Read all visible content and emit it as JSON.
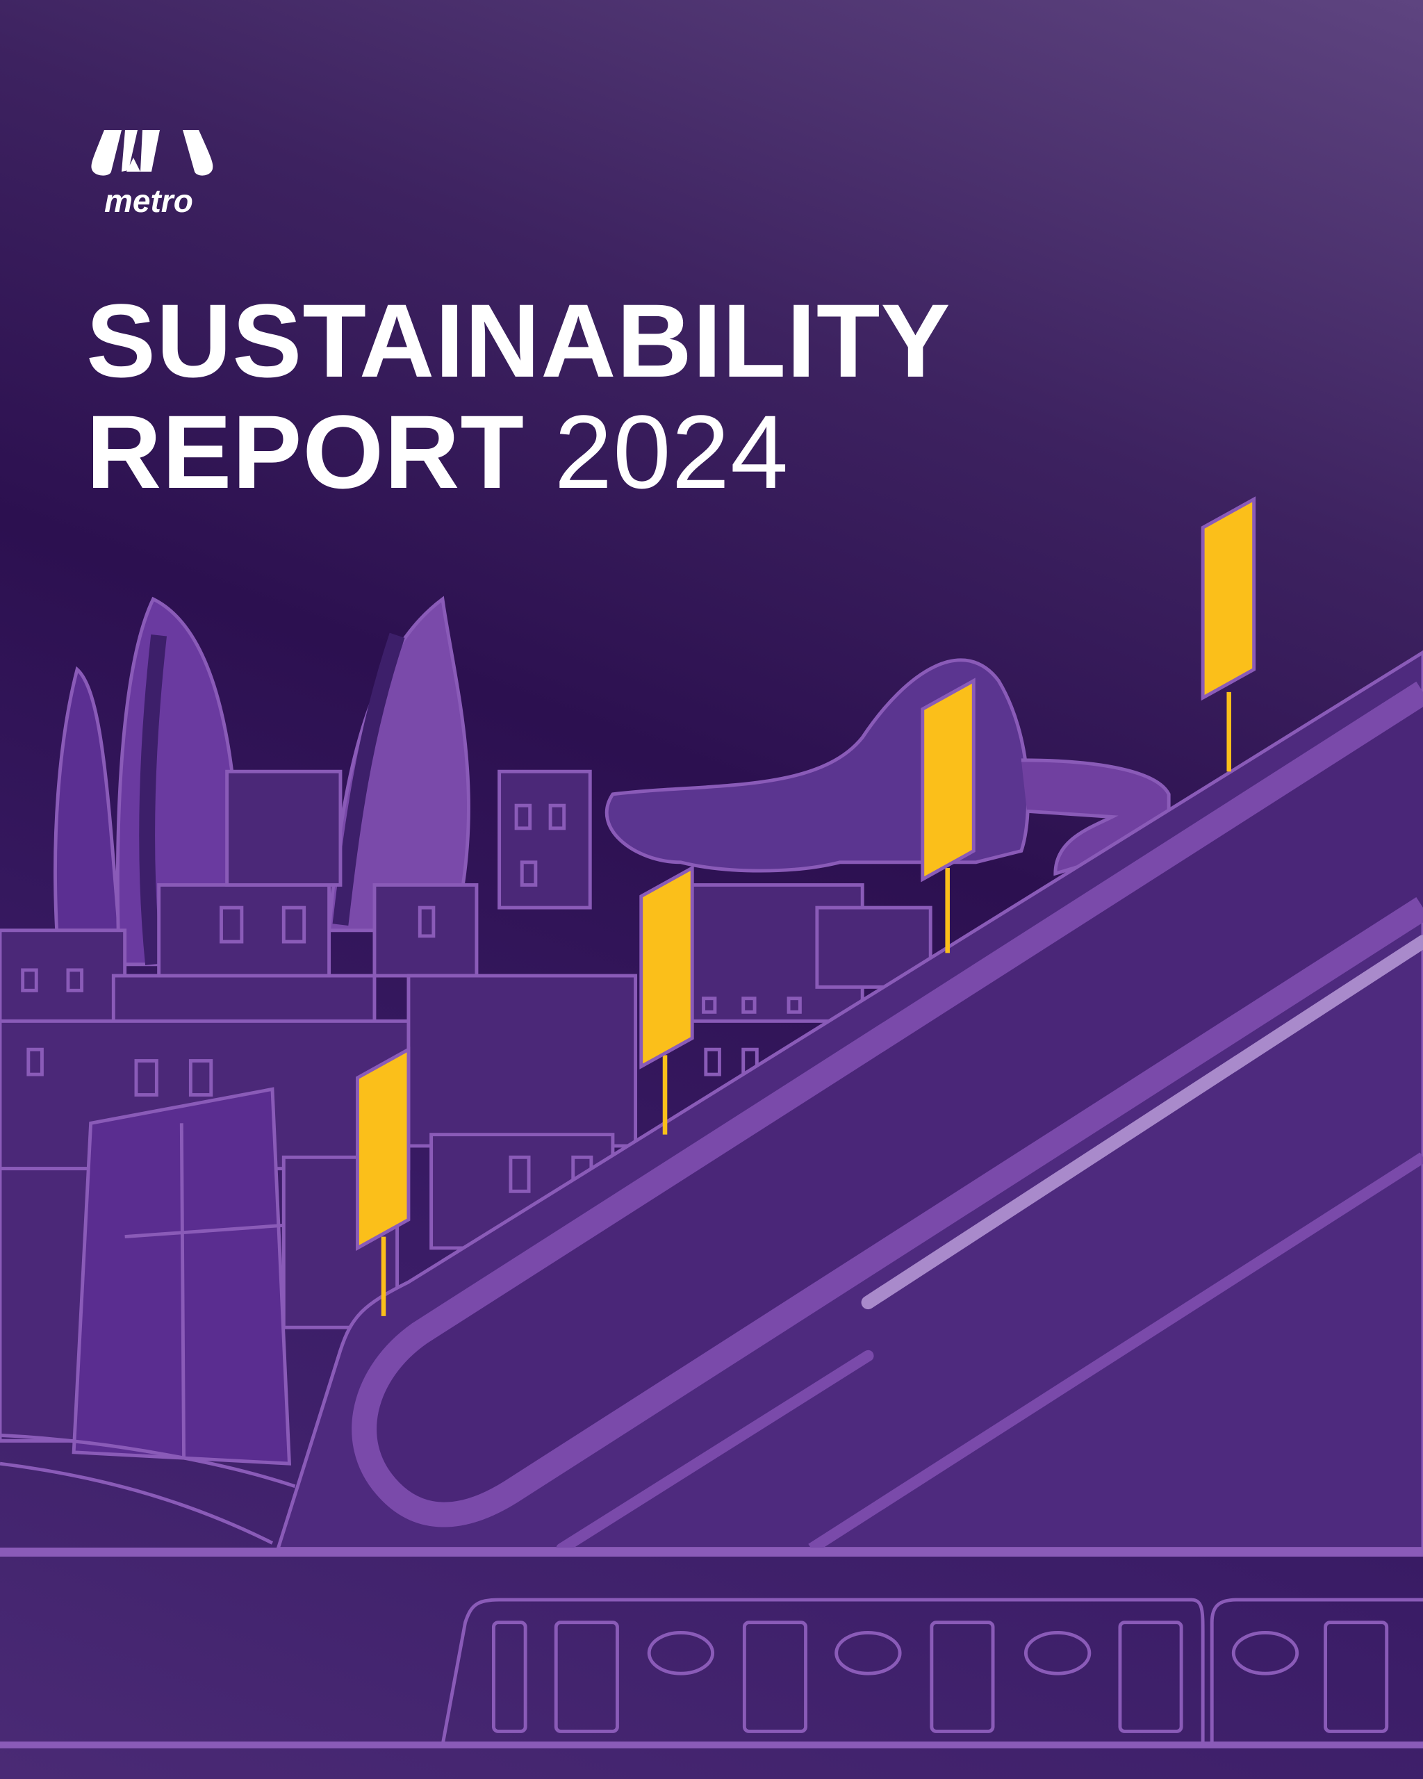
{
  "brand": {
    "name": "metro",
    "logo_icon": "metro-m-logo"
  },
  "title": {
    "line1": "SUSTAINABILITY",
    "line2_bold": "REPORT",
    "line2_year": "2024"
  },
  "colors": {
    "background": "#2c1050",
    "accent_yellow": "#fbbf1a",
    "outline": "#8a5bb8",
    "text": "#ffffff"
  }
}
